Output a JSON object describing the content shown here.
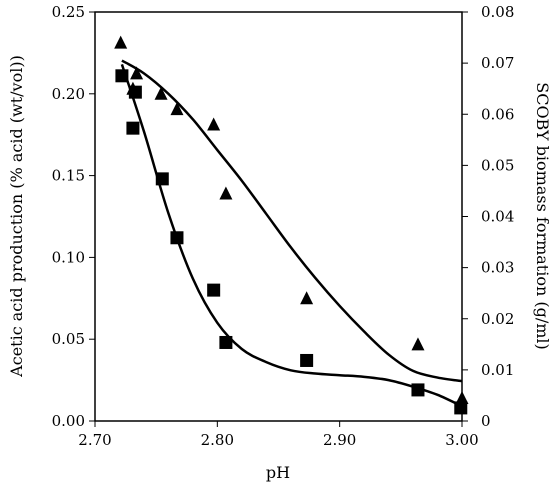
{
  "chart_data": {
    "type": "scatter",
    "title": "",
    "xlabel": "pH",
    "ylabel_left": "Acetic acid production (% acid (wt/vol))",
    "ylabel_right": "SCOBY biomass formation (g/ml)",
    "xlim": [
      2.7,
      3.0
    ],
    "ylim_left": [
      0.0,
      0.25
    ],
    "ylim_right": [
      0.0,
      0.08
    ],
    "x_ticks": [
      "2.70",
      "2.80",
      "2.90",
      "3.00"
    ],
    "y_ticks_left": [
      "0.00",
      "0.05",
      "0.10",
      "0.15",
      "0.20",
      "0.25"
    ],
    "y_ticks_right": [
      "0",
      "0.01",
      "0.02",
      "0.03",
      "0.04",
      "0.05",
      "0.06",
      "0.07",
      "0.08"
    ],
    "grid": false,
    "legend": "none",
    "series": [
      {
        "marker": "square",
        "axis": "left",
        "color": "#000000",
        "points": [
          [
            2.722,
            0.211
          ],
          [
            2.731,
            0.179
          ],
          [
            2.733,
            0.201
          ],
          [
            2.755,
            0.148
          ],
          [
            2.767,
            0.112
          ],
          [
            2.797,
            0.08
          ],
          [
            2.807,
            0.048
          ],
          [
            2.873,
            0.037
          ],
          [
            2.964,
            0.019
          ],
          [
            2.999,
            0.008
          ]
        ],
        "trend": [
          [
            2.722,
            0.218
          ],
          [
            2.74,
            0.177
          ],
          [
            2.76,
            0.127
          ],
          [
            2.78,
            0.087
          ],
          [
            2.8,
            0.06
          ],
          [
            2.82,
            0.044
          ],
          [
            2.84,
            0.036
          ],
          [
            2.86,
            0.031
          ],
          [
            2.88,
            0.029
          ],
          [
            2.9,
            0.028
          ],
          [
            2.92,
            0.027
          ],
          [
            2.94,
            0.025
          ],
          [
            2.96,
            0.021
          ],
          [
            2.98,
            0.016
          ],
          [
            3.0,
            0.009
          ]
        ]
      },
      {
        "marker": "triangle",
        "axis": "right",
        "color": "#000000",
        "points": [
          [
            2.721,
            0.074
          ],
          [
            2.731,
            0.065
          ],
          [
            2.734,
            0.068
          ],
          [
            2.754,
            0.064
          ],
          [
            2.767,
            0.061
          ],
          [
            2.797,
            0.058
          ],
          [
            2.807,
            0.0445
          ],
          [
            2.873,
            0.024
          ],
          [
            2.964,
            0.015
          ],
          [
            3.0,
            0.0045
          ]
        ],
        "trend": [
          [
            2.722,
            0.0705
          ],
          [
            2.74,
            0.068
          ],
          [
            2.76,
            0.064
          ],
          [
            2.78,
            0.059
          ],
          [
            2.8,
            0.053
          ],
          [
            2.82,
            0.047
          ],
          [
            2.84,
            0.0405
          ],
          [
            2.86,
            0.034
          ],
          [
            2.88,
            0.028
          ],
          [
            2.9,
            0.0225
          ],
          [
            2.92,
            0.0175
          ],
          [
            2.94,
            0.013
          ],
          [
            2.96,
            0.0098
          ],
          [
            2.98,
            0.0085
          ],
          [
            3.0,
            0.0078
          ]
        ]
      }
    ]
  }
}
